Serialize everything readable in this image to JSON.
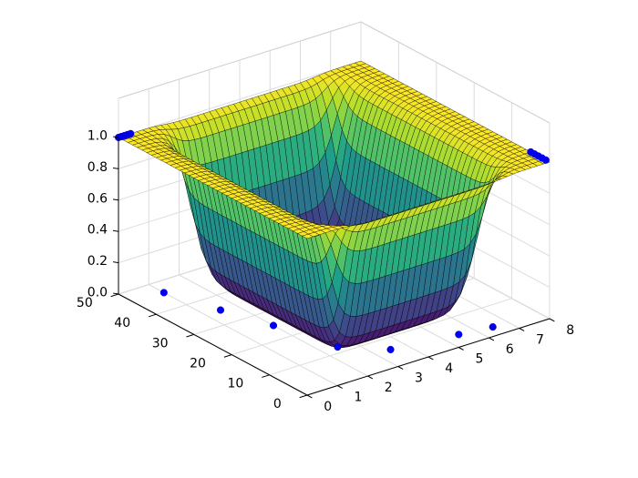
{
  "chart_data": {
    "type": "surface3d",
    "title": "",
    "xlabel": "",
    "ylabel": "",
    "zlabel": "",
    "colormap": "viridis",
    "x_ticks": [
      "0",
      "1",
      "2",
      "3",
      "4",
      "5",
      "6",
      "7",
      "8"
    ],
    "y_ticks": [
      "0",
      "10",
      "20",
      "30",
      "40",
      "50"
    ],
    "z_ticks": [
      "0.0",
      "0.2",
      "0.4",
      "0.6",
      "0.8",
      "1.0"
    ],
    "xlim": [
      0,
      8
    ],
    "ylim": [
      0,
      50
    ],
    "zlim": [
      0,
      1
    ],
    "surface": {
      "description_values": "z = 1 on the outer plateau; a rectangular well near z = 0 for x in about [1.5, 6.5] and y in about [5, 45]",
      "plateau_z": 1.0,
      "well_z": 0.0,
      "well_x_range": [
        1.5,
        6.5
      ],
      "well_y_range": [
        5,
        45
      ]
    },
    "scatter_points": [
      {
        "x": 0,
        "y": 50,
        "z": 1.0
      },
      {
        "x": 0.1,
        "y": 50,
        "z": 1.0
      },
      {
        "x": 0.2,
        "y": 50,
        "z": 1.0
      },
      {
        "x": 0.3,
        "y": 50,
        "z": 1.0
      },
      {
        "x": 0.4,
        "y": 50,
        "z": 1.0
      },
      {
        "x": 8,
        "y": 5,
        "z": 1.0
      },
      {
        "x": 8,
        "y": 4,
        "z": 1.0
      },
      {
        "x": 8,
        "y": 3,
        "z": 1.0
      },
      {
        "x": 8,
        "y": 2,
        "z": 1.0
      },
      {
        "x": 8,
        "y": 1,
        "z": 1.0
      },
      {
        "x": 1.0,
        "y": 46,
        "z": 0.0
      },
      {
        "x": 1.5,
        "y": 35,
        "z": 0.0
      },
      {
        "x": 2.0,
        "y": 25,
        "z": 0.0
      },
      {
        "x": 2.5,
        "y": 12,
        "z": 0.0
      },
      {
        "x": 3.5,
        "y": 6,
        "z": 0.0
      },
      {
        "x": 5.5,
        "y": 4,
        "z": 0.0
      },
      {
        "x": 6.5,
        "y": 3,
        "z": 0.0
      }
    ],
    "grid": true
  }
}
